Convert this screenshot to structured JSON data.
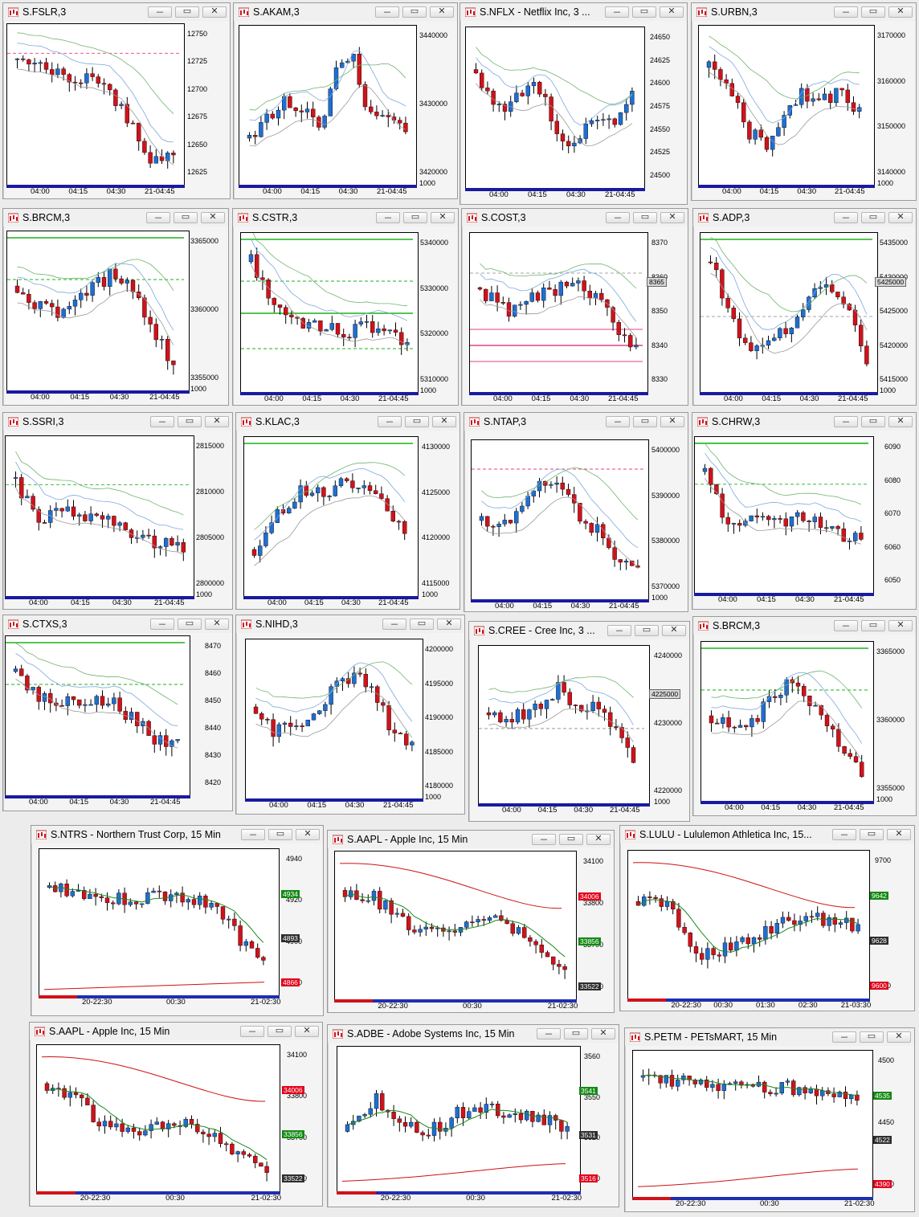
{
  "colors": {
    "up": "#1f6fd1",
    "down": "#d0121a",
    "ma_blue": "#7da8dd",
    "ma_green": "#6fb36f",
    "ma_gray": "#9a9a9a",
    "hline_green": "#1bb21b",
    "hline_pink": "#e6418a",
    "tag_green": "#138a13",
    "tag_red": "#e2001a",
    "tag_dark": "#2e2e2e"
  },
  "window_icon": "chart-app-icon",
  "window_buttons": {
    "minimize": "minimize-icon",
    "restore": "restore-icon",
    "close": "close-icon"
  },
  "windows": [
    {
      "id": "fslr",
      "title": "S.FSLR,3",
      "x_labels": [
        "04:00",
        "04:15",
        "04:30",
        "21-04:45"
      ],
      "y_labels": [
        "12750",
        "12725",
        "12700",
        "12675",
        "12650",
        "12625"
      ],
      "volume_label": ""
    },
    {
      "id": "akam",
      "title": "S.AKAM,3",
      "x_labels": [
        "04:00",
        "04:15",
        "04:30",
        "21-04:45"
      ],
      "y_labels": [
        "3440000",
        "3430000",
        "3420000"
      ],
      "volume_label": "1000"
    },
    {
      "id": "nflx",
      "title": "S.NFLX - Netflix Inc, 3 ...",
      "x_labels": [
        "04:00",
        "04:15",
        "04:30",
        "21-04:45"
      ],
      "y_labels": [
        "24650",
        "24625",
        "24600",
        "24575",
        "24550",
        "24525",
        "24500"
      ],
      "volume_label": ""
    },
    {
      "id": "urbn",
      "title": "S.URBN,3",
      "x_labels": [
        "04:00",
        "04:15",
        "04:30",
        "21-04:45"
      ],
      "y_labels": [
        "3170000",
        "3160000",
        "3150000",
        "3140000"
      ],
      "volume_label": "1000"
    },
    {
      "id": "brcm1",
      "title": "S.BRCM,3",
      "x_labels": [
        "04:00",
        "04:15",
        "04:30",
        "21-04:45"
      ],
      "y_labels": [
        "3365000",
        "3360000",
        "3355000"
      ],
      "volume_label": "1000"
    },
    {
      "id": "cstr",
      "title": "S.CSTR,3",
      "x_labels": [
        "04:00",
        "04:15",
        "04:30",
        "21-04:45"
      ],
      "y_labels": [
        "5340000",
        "5330000",
        "5320000",
        "5310000"
      ],
      "volume_label": "1000"
    },
    {
      "id": "cost",
      "title": "S.COST,3",
      "x_labels": [
        "04:00",
        "04:15",
        "04:30",
        "21-04:45"
      ],
      "y_labels": [
        "8370",
        "8360",
        "8350",
        "8340",
        "8330"
      ],
      "volume_label": "",
      "price_tags": [
        {
          "text": "8365",
          "style": "gray"
        }
      ]
    },
    {
      "id": "adp",
      "title": "S.ADP,3",
      "x_labels": [
        "04:00",
        "04:15",
        "04:30",
        "21-04:45"
      ],
      "y_labels": [
        "5435000",
        "5430000",
        "5425000",
        "5420000",
        "5415000"
      ],
      "volume_label": "1000",
      "price_tags": [
        {
          "text": "5425000",
          "style": "gray"
        }
      ]
    },
    {
      "id": "ssri",
      "title": "S.SSRI,3",
      "x_labels": [
        "04:00",
        "04:15",
        "04:30",
        "21-04:45"
      ],
      "y_labels": [
        "2815000",
        "2810000",
        "2805000",
        "2800000"
      ],
      "volume_label": "1000"
    },
    {
      "id": "klac",
      "title": "S.KLAC,3",
      "x_labels": [
        "04:00",
        "04:15",
        "04:30",
        "21-04:45"
      ],
      "y_labels": [
        "4130000",
        "4125000",
        "4120000",
        "4115000"
      ],
      "volume_label": "1000"
    },
    {
      "id": "ntap",
      "title": "S.NTAP,3",
      "x_labels": [
        "04:00",
        "04:15",
        "04:30",
        "21-04:45"
      ],
      "y_labels": [
        "5400000",
        "5390000",
        "5380000",
        "5370000"
      ],
      "volume_label": "1000"
    },
    {
      "id": "chrw",
      "title": "S.CHRW,3",
      "x_labels": [
        "04:00",
        "04:15",
        "04:30",
        "21-04:45"
      ],
      "y_labels": [
        "6090",
        "6080",
        "6070",
        "6060",
        "6050"
      ],
      "volume_label": ""
    },
    {
      "id": "ctxs",
      "title": "S.CTXS,3",
      "x_labels": [
        "04:00",
        "04:15",
        "04:30",
        "21-04:45"
      ],
      "y_labels": [
        "8470",
        "8460",
        "8450",
        "8440",
        "8430",
        "8420"
      ],
      "volume_label": ""
    },
    {
      "id": "nihd",
      "title": "S.NIHD,3",
      "x_labels": [
        "04:00",
        "04:15",
        "04:30",
        "21-04:45"
      ],
      "y_labels": [
        "4200000",
        "4195000",
        "4190000",
        "4185000",
        "4180000"
      ],
      "volume_label": "1000"
    },
    {
      "id": "cree",
      "title": "S.CREE - Cree Inc, 3 ...",
      "x_labels": [
        "04:00",
        "04:15",
        "04:30",
        "21-04:45"
      ],
      "y_labels": [
        "4240000",
        "4230000",
        "4220000"
      ],
      "volume_label": "1000",
      "price_tags": [
        {
          "text": "4225000",
          "style": "gray"
        }
      ]
    },
    {
      "id": "brcm2",
      "title": "S.BRCM,3",
      "x_labels": [
        "04:00",
        "04:15",
        "04:30",
        "21-04:45"
      ],
      "y_labels": [
        "3365000",
        "3360000",
        "3355000"
      ],
      "volume_label": "1000"
    },
    {
      "id": "ntrs",
      "title": "S.NTRS - Northern Trust Corp, 15 Min",
      "x_labels": [
        "20-22:30",
        "00:30",
        "21-02:30"
      ],
      "y_labels": [
        "4940",
        "4920",
        "4900",
        "4850"
      ],
      "volume_label": "",
      "price_tags": [
        {
          "text": "4934",
          "style": "green"
        },
        {
          "text": "4893",
          "style": "dark"
        },
        {
          "text": "4866",
          "style": "red"
        }
      ]
    },
    {
      "id": "aapl1",
      "title": "S.AAPL - Apple Inc, 15 Min",
      "x_labels": [
        "20-22:30",
        "00:30",
        "21-02:30"
      ],
      "y_labels": [
        "34100",
        "33800",
        "33700",
        "33600"
      ],
      "volume_label": "",
      "price_tags": [
        {
          "text": "34006",
          "style": "red"
        },
        {
          "text": "33856",
          "style": "green"
        },
        {
          "text": "33522",
          "style": "dark"
        }
      ]
    },
    {
      "id": "lulu",
      "title": "S.LULU - Lululemon Athletica Inc, 15...",
      "x_labels": [
        "20-22:30",
        "00:30",
        "01:30",
        "02:30",
        "21-03:30"
      ],
      "y_labels": [
        "9700",
        "9600"
      ],
      "volume_label": "",
      "price_tags": [
        {
          "text": "9642",
          "style": "green"
        },
        {
          "text": "9628",
          "style": "dark"
        },
        {
          "text": "9600",
          "style": "red"
        }
      ]
    },
    {
      "id": "aapl2",
      "title": "S.AAPL - Apple Inc, 15 Min",
      "x_labels": [
        "20-22:30",
        "00:30",
        "21-02:30"
      ],
      "y_labels": [
        "34100",
        "33800",
        "33700",
        "33600"
      ],
      "volume_label": "",
      "price_tags": [
        {
          "text": "34006",
          "style": "red"
        },
        {
          "text": "33856",
          "style": "green"
        },
        {
          "text": "33522",
          "style": "dark"
        }
      ]
    },
    {
      "id": "adbe",
      "title": "S.ADBE - Adobe Systems Inc, 15 Min",
      "x_labels": [
        "20-22:30",
        "00:30",
        "21-02:30"
      ],
      "y_labels": [
        "3560",
        "3550",
        "3520",
        "3510"
      ],
      "volume_label": "",
      "price_tags": [
        {
          "text": "3541",
          "style": "green"
        },
        {
          "text": "3531",
          "style": "dark"
        },
        {
          "text": "3516",
          "style": "red"
        }
      ]
    },
    {
      "id": "petm",
      "title": "S.PETM - PETsMART, 15 Min",
      "x_labels": [
        "20-22:30",
        "00:30",
        "21-02:30"
      ],
      "y_labels": [
        "4500",
        "4450",
        "4350"
      ],
      "volume_label": "",
      "price_tags": [
        {
          "text": "4535",
          "style": "green"
        },
        {
          "text": "4522",
          "style": "dark"
        },
        {
          "text": "4390",
          "style": "red"
        }
      ]
    }
  ]
}
